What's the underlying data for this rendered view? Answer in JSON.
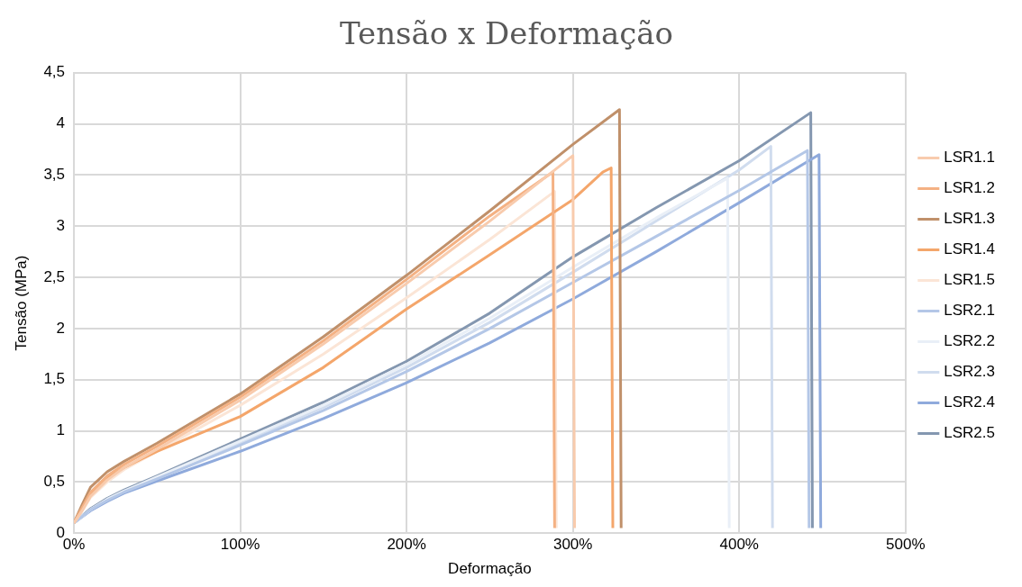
{
  "chart_data": {
    "type": "line",
    "title": "Tensão x Deformação",
    "xlabel": "Deformação",
    "ylabel": "Tensão (MPa)",
    "xlim": [
      0,
      500
    ],
    "xticks": [
      {
        "value": 0,
        "label": "0%"
      },
      {
        "value": 100,
        "label": "100%"
      },
      {
        "value": 200,
        "label": "200%"
      },
      {
        "value": 300,
        "label": "300%"
      },
      {
        "value": 400,
        "label": "400%"
      },
      {
        "value": 500,
        "label": "500%"
      }
    ],
    "ylim": [
      0,
      4.5
    ],
    "yticks": [
      0,
      {
        "value": 0.5,
        "label": "0,5"
      },
      1,
      {
        "value": 1.5,
        "label": "1,5"
      },
      2,
      {
        "value": 2.5,
        "label": "2,5"
      },
      3,
      {
        "value": 3.5,
        "label": "3,5"
      },
      4,
      {
        "value": 4.5,
        "label": "4,5"
      }
    ],
    "grid": true,
    "legend": "right",
    "marker": "none",
    "line_style": "solid",
    "series": [
      {
        "name": "LSR1.1",
        "color": "#f8cbad",
        "x": [
          0,
          5,
          10,
          20,
          30,
          50,
          100,
          150,
          200,
          250,
          300,
          301
        ],
        "values": [
          0.1,
          0.22,
          0.36,
          0.52,
          0.64,
          0.82,
          1.3,
          1.85,
          2.44,
          3.05,
          3.69,
          0.05
        ]
      },
      {
        "name": "LSR1.2",
        "color": "#f4b183",
        "x": [
          0,
          5,
          10,
          20,
          30,
          50,
          100,
          150,
          200,
          250,
          288,
          289
        ],
        "values": [
          0.1,
          0.25,
          0.4,
          0.56,
          0.67,
          0.85,
          1.33,
          1.88,
          2.48,
          3.1,
          3.53,
          0.05
        ]
      },
      {
        "name": "LSR1.3",
        "color": "#c0906a",
        "x": [
          0,
          5,
          10,
          20,
          30,
          50,
          100,
          150,
          200,
          250,
          300,
          328,
          329
        ],
        "values": [
          0.1,
          0.28,
          0.45,
          0.6,
          0.7,
          0.88,
          1.36,
          1.92,
          2.52,
          3.15,
          3.8,
          4.14,
          0.05
        ]
      },
      {
        "name": "LSR1.4",
        "color": "#f4a66b",
        "x": [
          0,
          5,
          10,
          20,
          30,
          50,
          100,
          150,
          200,
          250,
          300,
          318,
          323,
          324
        ],
        "values": [
          0.1,
          0.24,
          0.38,
          0.54,
          0.64,
          0.8,
          1.14,
          1.62,
          2.19,
          2.72,
          3.26,
          3.53,
          3.57,
          0.05
        ]
      },
      {
        "name": "LSR1.5",
        "color": "#fbe5d6",
        "x": [
          0,
          5,
          10,
          20,
          30,
          50,
          100,
          150,
          200,
          250,
          289,
          290
        ],
        "values": [
          0.1,
          0.22,
          0.35,
          0.5,
          0.62,
          0.8,
          1.25,
          1.75,
          2.3,
          2.87,
          3.34,
          0.05
        ]
      },
      {
        "name": "LSR2.1",
        "color": "#b4c7e7",
        "x": [
          0,
          10,
          20,
          30,
          50,
          100,
          150,
          200,
          250,
          300,
          350,
          400,
          441,
          442
        ],
        "values": [
          0.1,
          0.23,
          0.32,
          0.4,
          0.53,
          0.86,
          1.2,
          1.58,
          2.0,
          2.45,
          2.9,
          3.35,
          3.74,
          0.05
        ]
      },
      {
        "name": "LSR2.2",
        "color": "#e9eff7",
        "x": [
          0,
          10,
          20,
          30,
          50,
          100,
          150,
          200,
          250,
          300,
          350,
          393,
          394
        ],
        "values": [
          0.1,
          0.23,
          0.33,
          0.41,
          0.55,
          0.9,
          1.25,
          1.65,
          2.1,
          2.6,
          3.08,
          3.47,
          0.05
        ]
      },
      {
        "name": "LSR2.3",
        "color": "#d0dcee",
        "x": [
          0,
          10,
          20,
          30,
          50,
          100,
          150,
          200,
          250,
          300,
          350,
          400,
          419,
          420
        ],
        "values": [
          0.1,
          0.23,
          0.33,
          0.41,
          0.54,
          0.88,
          1.23,
          1.62,
          2.06,
          2.55,
          3.05,
          3.55,
          3.78,
          0.05
        ]
      },
      {
        "name": "LSR2.4",
        "color": "#8faadc",
        "x": [
          0,
          10,
          20,
          30,
          50,
          100,
          150,
          200,
          250,
          300,
          350,
          400,
          448,
          449
        ],
        "values": [
          0.1,
          0.22,
          0.31,
          0.39,
          0.51,
          0.8,
          1.12,
          1.47,
          1.86,
          2.29,
          2.75,
          3.23,
          3.7,
          0.05
        ]
      },
      {
        "name": "LSR2.5",
        "color": "#8497b0",
        "x": [
          0,
          10,
          20,
          30,
          50,
          100,
          150,
          200,
          250,
          300,
          350,
          400,
          443,
          444
        ],
        "values": [
          0.1,
          0.24,
          0.34,
          0.42,
          0.56,
          0.92,
          1.28,
          1.68,
          2.15,
          2.7,
          3.18,
          3.64,
          4.11,
          0.05
        ]
      }
    ]
  }
}
